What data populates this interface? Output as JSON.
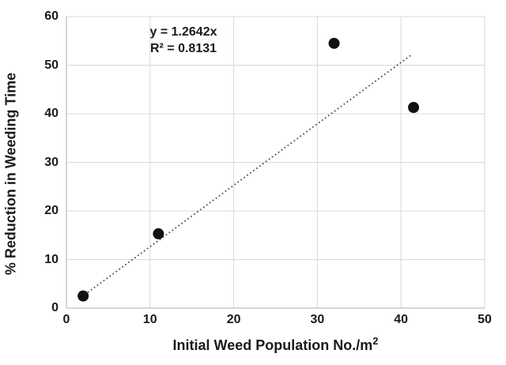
{
  "chart_data": {
    "type": "scatter",
    "title": "",
    "xlabel": "Initial Weed Population No./m²",
    "xlabel_main": "Initial Weed Population No./m",
    "xlabel_sup": "2",
    "ylabel": "% Reduction in Weeding Time",
    "xlim": [
      0,
      50
    ],
    "ylim": [
      0,
      60
    ],
    "x_ticks": [
      0,
      10,
      20,
      30,
      40,
      50
    ],
    "y_ticks": [
      0,
      10,
      20,
      30,
      40,
      50,
      60
    ],
    "grid": true,
    "legend": "none",
    "points": [
      {
        "x": 2,
        "y": 2.5
      },
      {
        "x": 11,
        "y": 15.3
      },
      {
        "x": 32,
        "y": 54.5
      },
      {
        "x": 41.5,
        "y": 41.3
      }
    ],
    "trendline": {
      "equation": "y = 1.2642x",
      "r_squared": "R² = 0.8131",
      "slope": 1.2642,
      "intercept": 0,
      "x_start": 1.8,
      "x_end": 41.3,
      "style": "dotted",
      "color": "#44546a"
    },
    "colors": {
      "point": "#111111",
      "gridline": "#d9d9d9",
      "axis_line": "#c0c0c0",
      "text": "#1a1a1a",
      "background": "#ffffff"
    }
  }
}
